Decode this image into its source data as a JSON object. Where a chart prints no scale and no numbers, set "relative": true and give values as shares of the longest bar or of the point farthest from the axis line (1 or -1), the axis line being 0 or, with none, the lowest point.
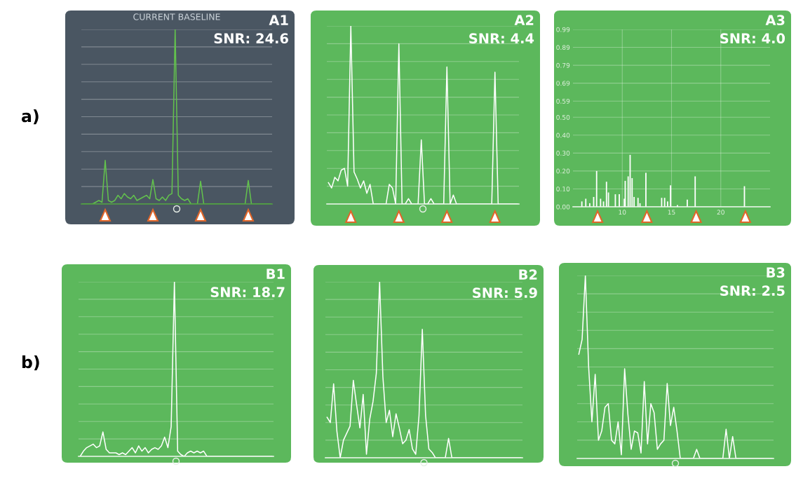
{
  "chart_data": [
    {
      "type": "line",
      "relative": true,
      "title": "CURRENT BASELINE",
      "grid": "y",
      "color": "#63c24d",
      "annotations": [
        "A1",
        "SNR: 24.6",
        "a)"
      ],
      "categories": [
        null,
        null,
        null,
        null,
        null,
        null,
        null,
        null,
        null,
        null,
        null,
        null,
        null,
        null,
        null,
        null,
        null,
        null,
        null,
        null,
        null,
        null,
        null,
        null,
        null,
        null,
        null,
        null,
        null,
        null,
        null,
        null,
        null,
        null,
        null,
        null,
        null,
        null,
        null,
        null,
        null,
        null,
        null,
        null,
        null,
        null,
        null,
        null,
        null,
        null,
        null,
        null,
        null,
        null,
        null,
        null,
        null,
        null,
        null,
        null
      ],
      "values": [
        0,
        0,
        0,
        0,
        0.01,
        0.02,
        0.01,
        0.25,
        0.02,
        0.01,
        0.02,
        0.05,
        0.03,
        0.06,
        0.04,
        0.03,
        0.05,
        0.02,
        0.03,
        0.04,
        0.05,
        0.03,
        0.14,
        0.03,
        0.02,
        0.04,
        0.02,
        0.05,
        0.06,
        1.0,
        0.05,
        0.03,
        0.02,
        0.03,
        0,
        0,
        0,
        0.13,
        0,
        0,
        0,
        0,
        0,
        0,
        0,
        0,
        0,
        0,
        0,
        0,
        0,
        0,
        0.135,
        0,
        0,
        0,
        0,
        0,
        0,
        0
      ]
    },
    {
      "type": "line",
      "relative": true,
      "grid": "y",
      "color": "#ffffff",
      "annotations": [
        "A2",
        "SNR: 4.4"
      ],
      "categories": [
        null,
        null,
        null,
        null,
        null,
        null,
        null,
        null,
        null,
        null,
        null,
        null,
        null,
        null,
        null,
        null,
        null,
        null,
        null,
        null,
        null,
        null,
        null,
        null,
        null,
        null,
        null,
        null,
        null,
        null,
        null,
        null,
        null,
        null,
        null,
        null,
        null,
        null,
        null,
        null,
        null,
        null,
        null,
        null,
        null,
        null,
        null,
        null,
        null,
        null,
        null,
        null,
        null,
        null,
        null,
        null,
        null,
        null,
        null,
        null
      ],
      "values": [
        0.12,
        0.09,
        0.15,
        0.13,
        0.19,
        0.2,
        0.1,
        1.0,
        0.18,
        0.14,
        0.09,
        0.13,
        0.06,
        0.11,
        0,
        0,
        0,
        0,
        0,
        0.11,
        0.09,
        0,
        0.9,
        0,
        0,
        0.03,
        0,
        0,
        0,
        0.36,
        0,
        0,
        0.03,
        0,
        0,
        0,
        0,
        0.77,
        0,
        0.05,
        0,
        0,
        0,
        0,
        0,
        0,
        0,
        0,
        0,
        0,
        0,
        0,
        0.74,
        0,
        0,
        0,
        0,
        0,
        0,
        0
      ]
    },
    {
      "type": "bar",
      "grid": true,
      "color": "#ffffff",
      "annotations": [
        "A3",
        "SNR: 4.0"
      ],
      "xlim": [
        5,
        25
      ],
      "ylim": [
        0,
        0.99
      ],
      "xticks": [
        10,
        15,
        20
      ],
      "yticks": [
        {
          "value": 0,
          "label": "0.00"
        },
        {
          "value": 0.1,
          "label": "0.10"
        },
        {
          "value": 0.2,
          "label": "0.20"
        },
        {
          "value": 0.3,
          "label": "0.30"
        },
        {
          "value": 0.4,
          "label": "0.40"
        },
        {
          "value": 0.5,
          "label": "0.50"
        },
        {
          "value": 0.59,
          "label": "0.59"
        },
        {
          "value": 0.69,
          "label": "0.69"
        },
        {
          "value": 0.79,
          "label": "0.79"
        },
        {
          "value": 0.89,
          "label": "0.89"
        },
        {
          "value": 0.99,
          "label": "0.99"
        }
      ],
      "x": [
        5.9,
        6.3,
        6.7,
        7.1,
        7.4,
        7.8,
        8.1,
        8.4,
        8.6,
        9.3,
        9.7,
        10.2,
        10.3,
        10.6,
        10.8,
        11.0,
        11.2,
        11.6,
        11.8,
        12.4,
        14.0,
        14.3,
        14.6,
        14.9,
        15.6,
        16.6,
        17.4,
        22.4
      ],
      "values": [
        0.03,
        0.045,
        0.02,
        0.055,
        0.2,
        0.045,
        0.03,
        0.14,
        0.08,
        0.07,
        0.07,
        0.045,
        0.145,
        0.17,
        0.29,
        0.16,
        0.055,
        0.05,
        0.02,
        0.19,
        0.05,
        0.05,
        0.03,
        0.12,
        0.01,
        0.04,
        0.17,
        0.115
      ]
    },
    {
      "type": "line",
      "relative": true,
      "grid": "y",
      "color": "#ffffff",
      "annotations": [
        "B1",
        "SNR: 18.7",
        "b)"
      ],
      "categories": [
        null,
        null,
        null,
        null,
        null,
        null,
        null,
        null,
        null,
        null,
        null,
        null,
        null,
        null,
        null,
        null,
        null,
        null,
        null,
        null,
        null,
        null,
        null,
        null,
        null,
        null,
        null,
        null,
        null,
        null,
        null,
        null,
        null,
        null,
        null,
        null,
        null,
        null,
        null,
        null,
        null,
        null,
        null,
        null,
        null,
        null,
        null,
        null,
        null,
        null,
        null,
        null,
        null,
        null,
        null,
        null,
        null,
        null,
        null,
        null
      ],
      "values": [
        0,
        0.03,
        0.05,
        0.06,
        0.07,
        0.05,
        0.06,
        0.14,
        0.04,
        0.02,
        0.02,
        0.02,
        0.01,
        0.02,
        0.01,
        0.03,
        0.05,
        0.02,
        0.06,
        0.03,
        0.05,
        0.02,
        0.04,
        0.05,
        0.04,
        0.06,
        0.11,
        0.05,
        0.17,
        1.0,
        0.03,
        0.01,
        0,
        0.02,
        0.03,
        0.02,
        0.03,
        0.02,
        0.03,
        0,
        0,
        0,
        0,
        0,
        0,
        0,
        0,
        0,
        0,
        0,
        0,
        0,
        0,
        0,
        0,
        0,
        0,
        0,
        0,
        0
      ]
    },
    {
      "type": "line",
      "relative": true,
      "grid": "y",
      "color": "#ffffff",
      "annotations": [
        "B2",
        "SNR: 5.9"
      ],
      "categories": [
        null,
        null,
        null,
        null,
        null,
        null,
        null,
        null,
        null,
        null,
        null,
        null,
        null,
        null,
        null,
        null,
        null,
        null,
        null,
        null,
        null,
        null,
        null,
        null,
        null,
        null,
        null,
        null,
        null,
        null,
        null,
        null,
        null,
        null,
        null,
        null,
        null,
        null,
        null,
        null,
        null,
        null,
        null,
        null,
        null,
        null,
        null,
        null,
        null,
        null,
        null,
        null,
        null,
        null,
        null,
        null,
        null,
        null,
        null,
        null
      ],
      "values": [
        0.23,
        0.2,
        0.42,
        0.15,
        0,
        0.1,
        0.14,
        0.18,
        0.44,
        0.3,
        0.17,
        0.36,
        0.02,
        0.22,
        0.32,
        0.48,
        1.0,
        0.46,
        0.2,
        0.27,
        0.12,
        0.25,
        0.17,
        0.08,
        0.1,
        0.16,
        0.05,
        0.02,
        0.24,
        0.73,
        0.24,
        0.05,
        0.03,
        0,
        0,
        0,
        0,
        0.11,
        0,
        0,
        0,
        0,
        0,
        0,
        0,
        0,
        0,
        0,
        0,
        0,
        0,
        0,
        0,
        0,
        0,
        0,
        0,
        0,
        0,
        0
      ]
    },
    {
      "type": "line",
      "relative": true,
      "grid": "y",
      "color": "#ffffff",
      "annotations": [
        "B3",
        "SNR: 2.5"
      ],
      "categories": [
        null,
        null,
        null,
        null,
        null,
        null,
        null,
        null,
        null,
        null,
        null,
        null,
        null,
        null,
        null,
        null,
        null,
        null,
        null,
        null,
        null,
        null,
        null,
        null,
        null,
        null,
        null,
        null,
        null,
        null,
        null,
        null,
        null,
        null,
        null,
        null,
        null,
        null,
        null,
        null,
        null,
        null,
        null,
        null,
        null,
        null,
        null,
        null,
        null,
        null,
        null,
        null,
        null,
        null,
        null,
        null,
        null,
        null,
        null,
        null
      ],
      "values": [
        0.57,
        0.65,
        1.0,
        0.5,
        0.2,
        0.46,
        0.1,
        0.15,
        0.28,
        0.3,
        0.1,
        0.08,
        0.2,
        0.02,
        0.49,
        0.24,
        0.05,
        0.15,
        0.14,
        0.03,
        0.42,
        0.08,
        0.3,
        0.25,
        0.05,
        0.08,
        0.1,
        0.41,
        0.18,
        0.28,
        0.15,
        0,
        0,
        0,
        0,
        0,
        0.05,
        0,
        0,
        0,
        0,
        0,
        0,
        0,
        0,
        0.16,
        0,
        0.12,
        0,
        0,
        0,
        0,
        0,
        0,
        0,
        0,
        0,
        0,
        0,
        0
      ]
    }
  ]
}
